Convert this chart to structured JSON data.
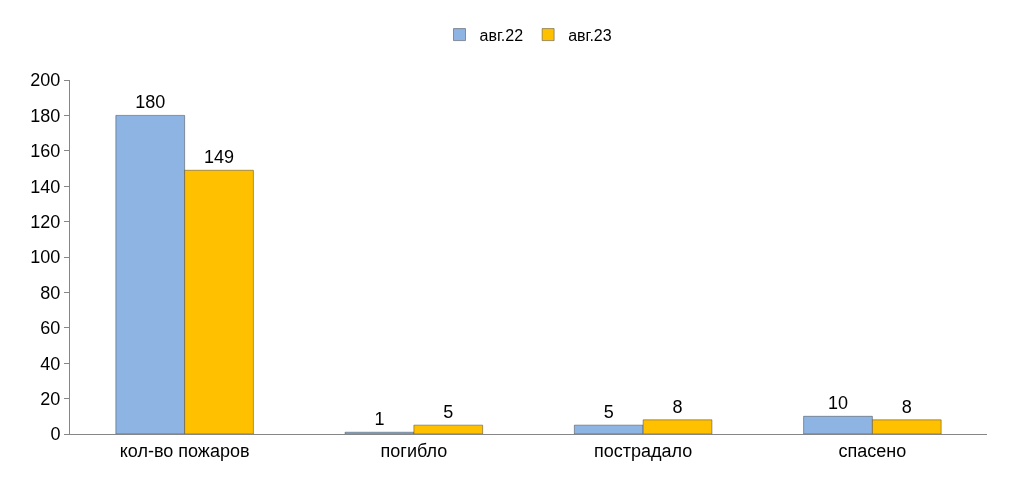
{
  "chart_data": {
    "type": "bar",
    "categories": [
      "кол-во пожаров",
      "погибло",
      "пострадало",
      "спасено"
    ],
    "series": [
      {
        "name": "авг.22",
        "color": "#8db4e2",
        "values": [
          180,
          1,
          5,
          10
        ]
      },
      {
        "name": "авг.23",
        "color": "#ffc000",
        "values": [
          149,
          5,
          8,
          8
        ]
      }
    ],
    "ylim": [
      0,
      200
    ],
    "yticks": [
      0,
      20,
      40,
      60,
      80,
      100,
      120,
      140,
      160,
      180,
      200
    ],
    "data_labels": true,
    "legend": "top"
  }
}
